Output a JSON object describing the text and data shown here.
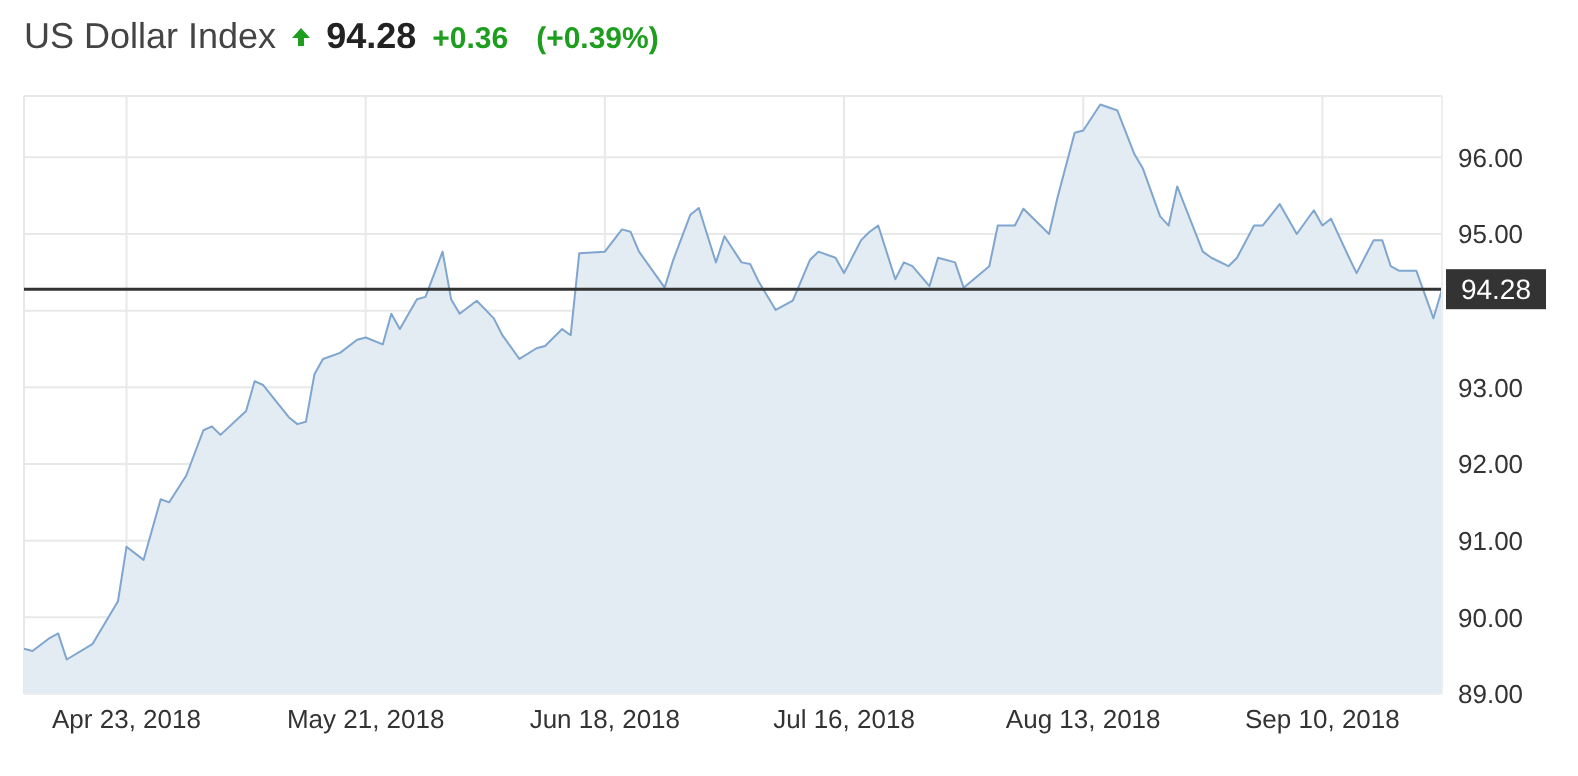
{
  "chart_data": {
    "type": "area",
    "title": "US Dollar Index",
    "annotations": [
      "94.28",
      "+0.36",
      "(+0.39%)"
    ],
    "x": [
      "2018-04-11",
      "2018-04-12",
      "2018-04-14",
      "2018-04-15",
      "2018-04-16",
      "2018-04-19",
      "2018-04-22",
      "2018-04-23",
      "2018-04-25",
      "2018-04-27",
      "2018-04-28",
      "2018-04-30",
      "2018-05-02",
      "2018-05-03",
      "2018-05-04",
      "2018-05-07",
      "2018-05-08",
      "2018-05-09",
      "2018-05-12",
      "2018-05-13",
      "2018-05-14",
      "2018-05-15",
      "2018-05-16",
      "2018-05-18",
      "2018-05-20",
      "2018-05-21",
      "2018-05-23",
      "2018-05-24",
      "2018-05-25",
      "2018-05-27",
      "2018-05-28",
      "2018-05-30",
      "2018-05-31",
      "2018-06-01",
      "2018-06-03",
      "2018-06-05",
      "2018-06-06",
      "2018-06-08",
      "2018-06-10",
      "2018-06-11",
      "2018-06-13",
      "2018-06-14",
      "2018-06-15",
      "2018-06-18",
      "2018-06-20",
      "2018-06-21",
      "2018-06-22",
      "2018-06-25",
      "2018-06-26",
      "2018-06-28",
      "2018-06-29",
      "2018-07-01",
      "2018-07-02",
      "2018-07-04",
      "2018-07-05",
      "2018-07-06",
      "2018-07-08",
      "2018-07-10",
      "2018-07-12",
      "2018-07-13",
      "2018-07-15",
      "2018-07-16",
      "2018-07-18",
      "2018-07-19",
      "2018-07-20",
      "2018-07-22",
      "2018-07-23",
      "2018-07-24",
      "2018-07-26",
      "2018-07-27",
      "2018-07-29",
      "2018-07-30",
      "2018-08-02",
      "2018-08-03",
      "2018-08-05",
      "2018-08-06",
      "2018-08-09",
      "2018-08-10",
      "2018-08-12",
      "2018-08-13",
      "2018-08-15",
      "2018-08-17",
      "2018-08-19",
      "2018-08-20",
      "2018-08-22",
      "2018-08-23",
      "2018-08-24",
      "2018-08-27",
      "2018-08-28",
      "2018-08-30",
      "2018-08-31",
      "2018-09-02",
      "2018-09-03",
      "2018-09-05",
      "2018-09-07",
      "2018-09-09",
      "2018-09-10",
      "2018-09-11",
      "2018-09-13",
      "2018-09-14",
      "2018-09-16",
      "2018-09-17",
      "2018-09-18",
      "2018-09-19",
      "2018-09-21",
      "2018-09-23",
      "2018-09-24"
    ],
    "series": [
      {
        "color": "#7fa6cf",
        "values": [
          89.59,
          89.56,
          89.73,
          89.79,
          89.45,
          89.65,
          90.21,
          90.92,
          90.75,
          91.54,
          91.5,
          91.85,
          92.44,
          92.49,
          92.38,
          92.69,
          93.08,
          93.03,
          92.61,
          92.52,
          92.55,
          93.17,
          93.37,
          93.45,
          93.62,
          93.65,
          93.56,
          93.96,
          93.76,
          94.15,
          94.18,
          94.77,
          94.15,
          93.96,
          94.13,
          93.9,
          93.68,
          93.37,
          93.51,
          93.54,
          93.76,
          93.68,
          94.75,
          94.77,
          95.06,
          95.03,
          94.77,
          94.3,
          94.66,
          95.25,
          95.34,
          94.63,
          94.97,
          94.63,
          94.61,
          94.38,
          94.01,
          94.13,
          94.66,
          94.77,
          94.69,
          94.49,
          94.92,
          95.03,
          95.11,
          94.41,
          94.63,
          94.58,
          94.32,
          94.69,
          94.63,
          94.3,
          94.58,
          95.11,
          95.11,
          95.33,
          95.0,
          95.48,
          96.32,
          96.35,
          96.69,
          96.61,
          96.04,
          95.85,
          95.23,
          95.11,
          95.62,
          94.77,
          94.69,
          94.58,
          94.69,
          95.11,
          95.11,
          95.39,
          95.0,
          95.31,
          95.11,
          95.2,
          94.72,
          94.49,
          94.92,
          94.92,
          94.58,
          94.52,
          94.52,
          93.9,
          94.28
        ]
      }
    ],
    "xlim": [
      "2018-04-11",
      "2018-09-24"
    ],
    "xticks": [
      {
        "value": "2018-04-23",
        "label": "Apr 23, 2018"
      },
      {
        "value": "2018-05-21",
        "label": "May 21, 2018"
      },
      {
        "value": "2018-06-18",
        "label": "Jun 18, 2018"
      },
      {
        "value": "2018-07-16",
        "label": "Jul 16, 2018"
      },
      {
        "value": "2018-08-13",
        "label": "Aug 13, 2018"
      },
      {
        "value": "2018-09-10",
        "label": "Sep 10, 2018"
      }
    ],
    "ylim": [
      89,
      96.8
    ],
    "yticks": [
      {
        "value": 89,
        "label": "89.00"
      },
      {
        "value": 90,
        "label": "90.00"
      },
      {
        "value": 91,
        "label": "91.00"
      },
      {
        "value": 92,
        "label": "92.00"
      },
      {
        "value": 93,
        "label": "93.00"
      },
      {
        "value": 94,
        "label": null
      },
      {
        "value": 95,
        "label": "95.00"
      },
      {
        "value": 96,
        "label": "96.00"
      }
    ],
    "ref_lines": [
      {
        "axis": "y",
        "value": 94.28,
        "label": "94.28",
        "color": "#333333"
      }
    ],
    "grid": true,
    "marker": "none",
    "line_style": "solid"
  }
}
